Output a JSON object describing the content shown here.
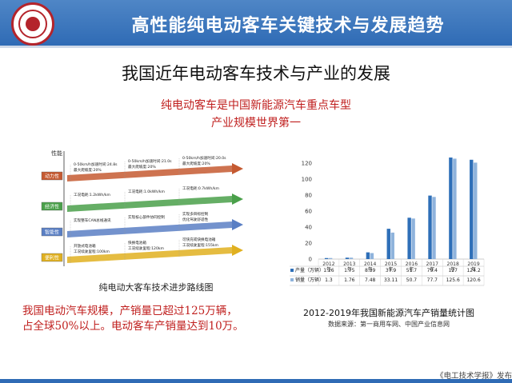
{
  "header": {
    "title": "高性能纯电动客车关键技术与发展趋势"
  },
  "subtitle": "我国近年电动客车技术与产业的发展",
  "highlight": {
    "line1": "纯电动客车是中国新能源汽车重点车型",
    "line2": "产业规模世界第一"
  },
  "roadmap": {
    "caption": "纯电动大客车技术进步路线图",
    "axis_label": "性能",
    "rows": [
      {
        "label": "动力性",
        "color": "#c55a31",
        "stages": [
          [
            "0-50km/h加速时间:24.8s",
            "最大爬坡度:20%"
          ],
          [
            "0-50km/h加速时间:21.0s",
            "最大爬坡度:20%"
          ],
          [
            "0-50km/h加速时间:20.0s",
            "最大爬坡度:20%"
          ]
        ]
      },
      {
        "label": "经济性",
        "color": "#4aa04a",
        "stages": [
          [
            "工况电耗:1.2kWh/km"
          ],
          [
            "工况电耗:1.0kWh/km"
          ],
          [
            "工况电耗:0.7kWh/km"
          ]
        ]
      },
      {
        "label": "智能性",
        "color": "#5a7fc4",
        "stages": [
          [
            "实现整车CAN总线通讯"
          ],
          [
            "实现核心部件协同控制"
          ],
          [
            "实现多目标控制",
            "优化驾驶舒适性"
          ]
        ]
      },
      {
        "label": "便利性",
        "color": "#e0b020",
        "stages": [
          [
            "开放式电池箱",
            "工况续驶里程:100km"
          ],
          [
            "快换电池箱",
            "工况续驶里程:120km"
          ],
          [
            "可快充或快换电池箱",
            "工况续驶里程:155km"
          ]
        ]
      }
    ]
  },
  "summary": {
    "line1": "我国电动汽车规模，产销量已超过125万辆，",
    "line2": "占全球50%以上。电动客车产销量达到10万。"
  },
  "chart_data": {
    "type": "bar",
    "title": "2012-2019年我国新能源汽车产销量统计图",
    "source": "数据来源：第一商用车网、中国产业信息网",
    "categories": [
      "2012年",
      "2013年",
      "2014年",
      "2015年",
      "2016年",
      "2017年",
      "2018年",
      "2019年"
    ],
    "series": [
      {
        "name": "产量（万辆）",
        "color": "#2e6fb8",
        "values": [
          1.26,
          1.75,
          8.39,
          37.9,
          51.7,
          79.4,
          127,
          124.2
        ],
        "labels": [
          "1.26",
          "1.75",
          "8.39",
          "37.9",
          "51.7",
          "79.4",
          "127",
          "124.2"
        ]
      },
      {
        "name": "销量（万辆）",
        "color": "#8fb3dc",
        "values": [
          1.3,
          1.76,
          7.48,
          33.11,
          50.7,
          77.7,
          125.6,
          120.6
        ],
        "labels": [
          "1.3",
          "1.76",
          "7.48",
          "33.11",
          "50.7",
          "77.7",
          "125.6",
          "120.6"
        ]
      }
    ],
    "ylim": [
      0,
      140
    ],
    "yticks": [
      "0",
      "20",
      "40",
      "60",
      "80",
      "100",
      "120"
    ],
    "grid": false,
    "legend": "table-below"
  },
  "footer": {
    "text": "《电工技术学报》发布"
  }
}
